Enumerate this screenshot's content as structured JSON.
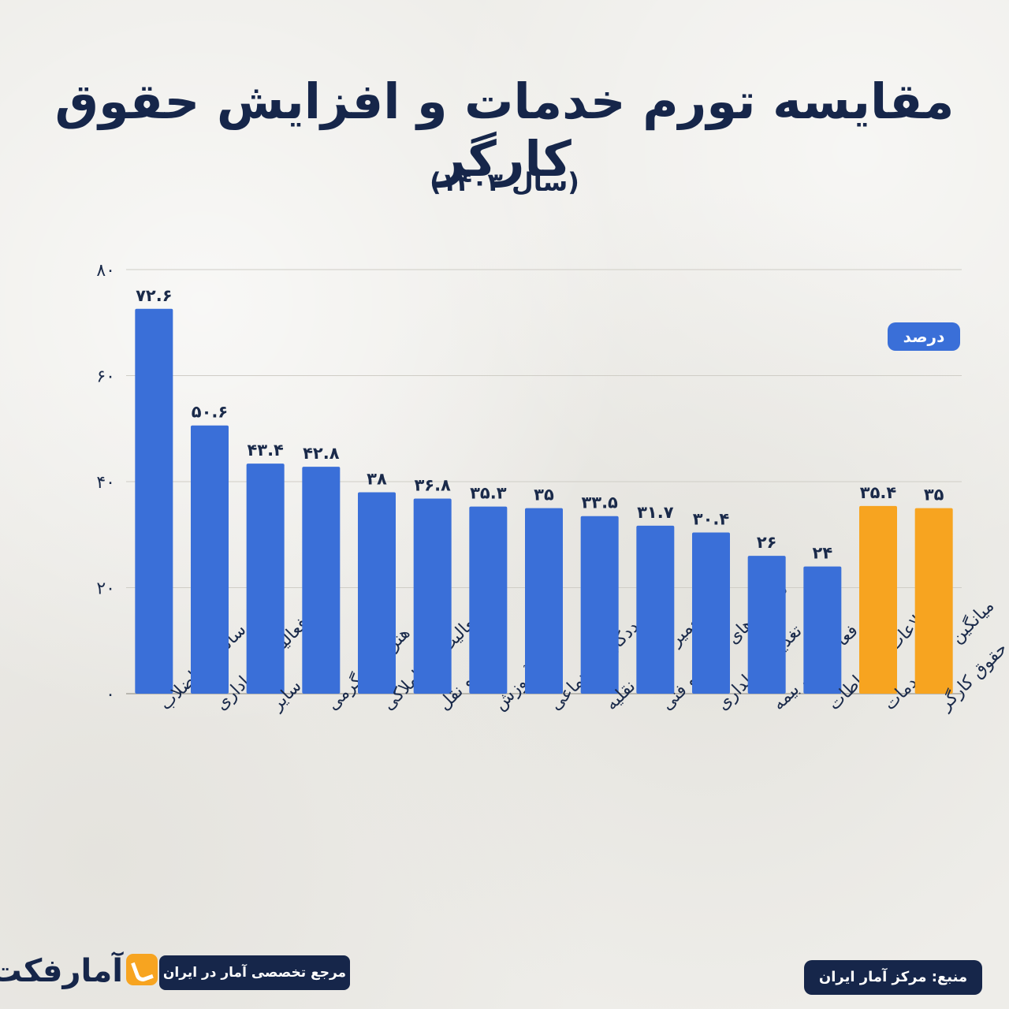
{
  "header": {
    "title": "مقایسه تورم خدمات و افزایش حقوق کارگر",
    "subtitle": "(سال ۱۴۰۳)"
  },
  "unit_label": "درصد",
  "footer": {
    "source": "منبع: مرکز آمار ایران",
    "tagline": "مرجع تخصصی آمار در ایران",
    "brand": "آمارفکت"
  },
  "colors": {
    "bar_primary": "#3a6fd8",
    "bar_highlight": "#f7a420",
    "title": "#16264a"
  },
  "chart_data": {
    "type": "bar",
    "categories": [
      "آب‌رسانی و فاضلاب",
      "فعالیت‌های اداری",
      "سایر",
      "هنر و سرگرمی",
      "فعالیت‌های املاکی",
      "حمل و نقل",
      "آموزش",
      "مددکاری اجتماعی",
      "تعمیر وسایل نقلیه",
      "فعالیت‌های علمی و فنی",
      "تغذیه و هتلداری",
      "فعالیت‌های بیمه",
      "اطلاعات و ارتباطات",
      "میانگین تورم خدمات",
      "میزان افزایش حقوق کارگر"
    ],
    "values": [
      72.6,
      50.6,
      43.4,
      42.8,
      38,
      36.8,
      35.3,
      35,
      33.5,
      31.7,
      30.4,
      26,
      24,
      35.4,
      35
    ],
    "value_labels": [
      "۷۲.۶",
      "۵۰.۶",
      "۴۳.۴",
      "۴۲.۸",
      "۳۸",
      "۳۶.۸",
      "۳۵.۳",
      "۳۵",
      "۳۳.۵",
      "۳۱.۷",
      "۳۰.۴",
      "۲۶",
      "۲۴",
      "۳۵.۴",
      "۳۵"
    ],
    "highlight": [
      false,
      false,
      false,
      false,
      false,
      false,
      false,
      false,
      false,
      false,
      false,
      false,
      false,
      true,
      true
    ],
    "ylim": [
      0,
      80
    ],
    "yticks": [
      0,
      20,
      40,
      60,
      80
    ],
    "ytick_labels": [
      "۰",
      "۲۰",
      "۴۰",
      "۶۰",
      "۸۰"
    ],
    "grid": true,
    "xlabel": "",
    "ylabel": ""
  }
}
